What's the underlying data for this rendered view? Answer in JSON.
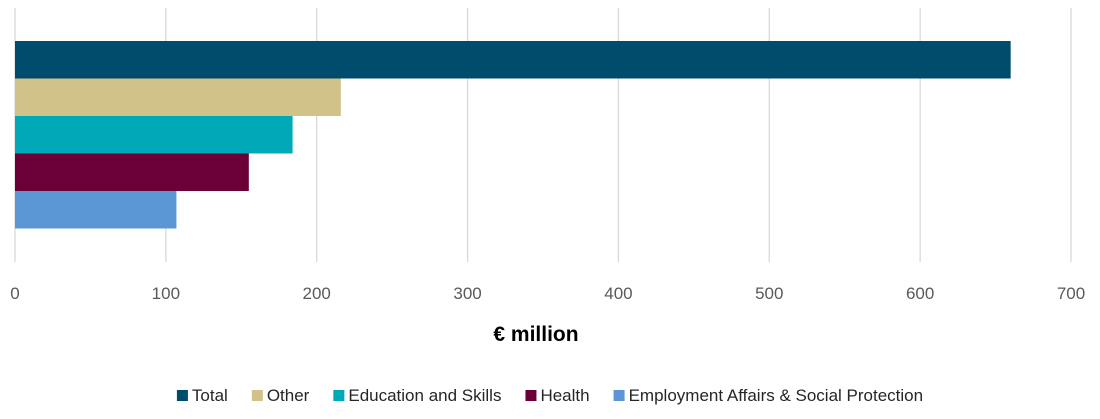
{
  "chart_data": {
    "type": "bar",
    "orientation": "horizontal",
    "title": "",
    "xlabel": "€ million",
    "ylabel": "",
    "xlim": [
      0,
      700
    ],
    "xticks": [
      0,
      100,
      200,
      300,
      400,
      500,
      600,
      700
    ],
    "grid": "vertical",
    "legend_position": "bottom",
    "series": [
      {
        "name": "Total",
        "value": 660,
        "color": "#004c6d"
      },
      {
        "name": "Other",
        "value": 216,
        "color": "#d1c28a"
      },
      {
        "name": "Education and Skills",
        "value": 184,
        "color": "#00a9b8"
      },
      {
        "name": "Health",
        "value": 155,
        "color": "#6b0038"
      },
      {
        "name": "Employment Affairs & Social Protection",
        "value": 107,
        "color": "#5b97d4"
      }
    ]
  }
}
